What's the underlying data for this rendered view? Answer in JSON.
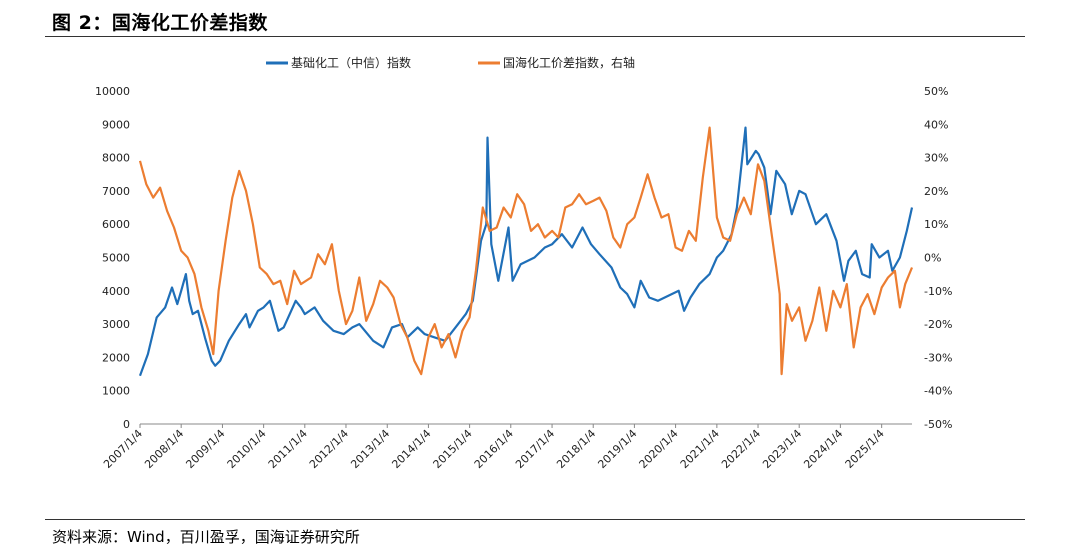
{
  "figure": {
    "title": "图 2：国海化工价差指数",
    "source": "资料来源：Wind，百川盈孚，国海证券研究所"
  },
  "chart_data": {
    "type": "line",
    "x_axis": {
      "tick_labels": [
        "2007/1/4",
        "2008/1/4",
        "2009/1/4",
        "2010/1/4",
        "2011/1/4",
        "2012/1/4",
        "2013/1/4",
        "2014/1/4",
        "2015/1/4",
        "2016/1/4",
        "2017/1/4",
        "2018/1/4",
        "2019/1/4",
        "2020/1/4",
        "2021/1/4",
        "2022/1/4",
        "2023/1/4",
        "2024/1/4",
        "2025/1/4"
      ],
      "range": [
        "2007-01-04",
        "2025-09-30"
      ]
    },
    "y_axis_left": {
      "range": [
        0,
        10000
      ],
      "tick_labels": [
        "0",
        "1000",
        "2000",
        "3000",
        "4000",
        "5000",
        "6000",
        "7000",
        "8000",
        "9000",
        "10000"
      ]
    },
    "y_axis_right": {
      "range": [
        -50,
        50
      ],
      "unit": "%",
      "tick_labels": [
        "-50%",
        "-40%",
        "-30%",
        "-20%",
        "-10%",
        "0%",
        "10%",
        "20%",
        "30%",
        "40%",
        "50%"
      ]
    },
    "grid": false,
    "legend": {
      "placement": "top-center"
    },
    "series": [
      {
        "name": "基础化工（中信）指数",
        "axis": "left",
        "color": "#1f6fb8",
        "points": [
          [
            "2007-01-04",
            1450
          ],
          [
            "2007-03-15",
            2100
          ],
          [
            "2007-06-01",
            3200
          ],
          [
            "2007-08-15",
            3500
          ],
          [
            "2007-10-15",
            4100
          ],
          [
            "2007-12-01",
            3600
          ],
          [
            "2008-01-04",
            4000
          ],
          [
            "2008-02-15",
            4500
          ],
          [
            "2008-03-15",
            3700
          ],
          [
            "2008-04-15",
            3300
          ],
          [
            "2008-06-01",
            3400
          ],
          [
            "2008-08-01",
            2600
          ],
          [
            "2008-10-01",
            1900
          ],
          [
            "2008-11-01",
            1750
          ],
          [
            "2008-12-15",
            1900
          ],
          [
            "2009-03-01",
            2500
          ],
          [
            "2009-06-01",
            3000
          ],
          [
            "2009-08-01",
            3300
          ],
          [
            "2009-09-01",
            2900
          ],
          [
            "2009-11-15",
            3400
          ],
          [
            "2010-01-04",
            3500
          ],
          [
            "2010-03-01",
            3700
          ],
          [
            "2010-05-15",
            2800
          ],
          [
            "2010-07-01",
            2900
          ],
          [
            "2010-10-15",
            3700
          ],
          [
            "2010-12-01",
            3500
          ],
          [
            "2011-01-04",
            3300
          ],
          [
            "2011-04-01",
            3500
          ],
          [
            "2011-06-15",
            3100
          ],
          [
            "2011-09-15",
            2800
          ],
          [
            "2011-12-15",
            2700
          ],
          [
            "2012-03-01",
            2900
          ],
          [
            "2012-05-01",
            3000
          ],
          [
            "2012-09-01",
            2500
          ],
          [
            "2012-12-01",
            2300
          ],
          [
            "2013-02-15",
            2900
          ],
          [
            "2013-05-15",
            3000
          ],
          [
            "2013-07-01",
            2600
          ],
          [
            "2013-10-01",
            2900
          ],
          [
            "2013-12-01",
            2700
          ],
          [
            "2014-03-01",
            2600
          ],
          [
            "2014-06-01",
            2500
          ],
          [
            "2014-09-01",
            2900
          ],
          [
            "2014-12-01",
            3300
          ],
          [
            "2015-02-01",
            3700
          ],
          [
            "2015-04-15",
            5500
          ],
          [
            "2015-06-01",
            6000
          ],
          [
            "2015-06-12",
            8600
          ],
          [
            "2015-07-15",
            5400
          ],
          [
            "2015-09-15",
            4300
          ],
          [
            "2015-12-15",
            5900
          ],
          [
            "2016-01-20",
            4300
          ],
          [
            "2016-04-01",
            4800
          ],
          [
            "2016-08-01",
            5000
          ],
          [
            "2016-11-01",
            5300
          ],
          [
            "2017-01-04",
            5400
          ],
          [
            "2017-04-01",
            5700
          ],
          [
            "2017-07-01",
            5300
          ],
          [
            "2017-10-01",
            5900
          ],
          [
            "2017-12-15",
            5400
          ],
          [
            "2018-03-01",
            5100
          ],
          [
            "2018-06-15",
            4700
          ],
          [
            "2018-09-01",
            4100
          ],
          [
            "2018-11-01",
            3900
          ],
          [
            "2019-01-04",
            3500
          ],
          [
            "2019-03-01",
            4300
          ],
          [
            "2019-05-15",
            3800
          ],
          [
            "2019-08-01",
            3700
          ],
          [
            "2019-12-01",
            3900
          ],
          [
            "2020-02-01",
            4000
          ],
          [
            "2020-03-20",
            3400
          ],
          [
            "2020-05-15",
            3800
          ],
          [
            "2020-08-01",
            4200
          ],
          [
            "2020-11-01",
            4500
          ],
          [
            "2021-01-04",
            5000
          ],
          [
            "2021-03-01",
            5200
          ],
          [
            "2021-05-15",
            5700
          ],
          [
            "2021-07-01",
            6500
          ],
          [
            "2021-09-15",
            8900
          ],
          [
            "2021-10-01",
            7800
          ],
          [
            "2021-12-15",
            8200
          ],
          [
            "2022-01-10",
            8100
          ],
          [
            "2022-03-01",
            7700
          ],
          [
            "2022-04-25",
            6300
          ],
          [
            "2022-06-15",
            7600
          ],
          [
            "2022-09-01",
            7200
          ],
          [
            "2022-10-30",
            6300
          ],
          [
            "2023-01-04",
            7000
          ],
          [
            "2023-03-01",
            6900
          ],
          [
            "2023-06-01",
            6000
          ],
          [
            "2023-09-01",
            6300
          ],
          [
            "2023-12-01",
            5500
          ],
          [
            "2024-02-05",
            4300
          ],
          [
            "2024-03-15",
            4900
          ],
          [
            "2024-05-20",
            5200
          ],
          [
            "2024-07-15",
            4500
          ],
          [
            "2024-09-20",
            4400
          ],
          [
            "2024-10-08",
            5400
          ],
          [
            "2024-12-15",
            5000
          ],
          [
            "2025-03-01",
            5200
          ],
          [
            "2025-04-08",
            4600
          ],
          [
            "2025-06-15",
            5000
          ],
          [
            "2025-08-15",
            5800
          ],
          [
            "2025-09-30",
            6500
          ]
        ]
      },
      {
        "name": "国海化工价差指数，右轴",
        "axis": "right",
        "color": "#ec7d31",
        "points": [
          [
            "2007-01-04",
            29
          ],
          [
            "2007-03-01",
            22
          ],
          [
            "2007-05-01",
            18
          ],
          [
            "2007-07-01",
            21
          ],
          [
            "2007-09-01",
            14
          ],
          [
            "2007-11-01",
            9
          ],
          [
            "2008-01-04",
            2
          ],
          [
            "2008-03-01",
            0
          ],
          [
            "2008-05-01",
            -5
          ],
          [
            "2008-07-01",
            -15
          ],
          [
            "2008-09-01",
            -22
          ],
          [
            "2008-10-15",
            -29
          ],
          [
            "2008-12-01",
            -10
          ],
          [
            "2009-02-01",
            5
          ],
          [
            "2009-04-01",
            18
          ],
          [
            "2009-06-01",
            26
          ],
          [
            "2009-08-01",
            20
          ],
          [
            "2009-10-01",
            10
          ],
          [
            "2009-12-01",
            -3
          ],
          [
            "2010-02-01",
            -5
          ],
          [
            "2010-04-01",
            -8
          ],
          [
            "2010-06-01",
            -7
          ],
          [
            "2010-08-01",
            -14
          ],
          [
            "2010-10-01",
            -4
          ],
          [
            "2010-12-01",
            -8
          ],
          [
            "2011-03-01",
            -6
          ],
          [
            "2011-05-01",
            1
          ],
          [
            "2011-07-01",
            -2
          ],
          [
            "2011-09-01",
            4
          ],
          [
            "2011-11-01",
            -10
          ],
          [
            "2012-01-04",
            -20
          ],
          [
            "2012-03-01",
            -16
          ],
          [
            "2012-05-01",
            -6
          ],
          [
            "2012-07-01",
            -19
          ],
          [
            "2012-09-01",
            -14
          ],
          [
            "2012-11-01",
            -7
          ],
          [
            "2013-01-04",
            -9
          ],
          [
            "2013-03-01",
            -12
          ],
          [
            "2013-05-01",
            -20
          ],
          [
            "2013-07-01",
            -24
          ],
          [
            "2013-09-01",
            -31
          ],
          [
            "2013-11-01",
            -35
          ],
          [
            "2014-01-04",
            -24
          ],
          [
            "2014-03-01",
            -20
          ],
          [
            "2014-05-01",
            -27
          ],
          [
            "2014-07-01",
            -23
          ],
          [
            "2014-09-01",
            -30
          ],
          [
            "2014-11-01",
            -22
          ],
          [
            "2015-01-04",
            -18
          ],
          [
            "2015-03-01",
            -4
          ],
          [
            "2015-05-01",
            15
          ],
          [
            "2015-07-01",
            8
          ],
          [
            "2015-09-01",
            9
          ],
          [
            "2015-11-01",
            15
          ],
          [
            "2016-01-04",
            12
          ],
          [
            "2016-03-01",
            19
          ],
          [
            "2016-05-01",
            16
          ],
          [
            "2016-07-01",
            8
          ],
          [
            "2016-09-01",
            10
          ],
          [
            "2016-11-01",
            6
          ],
          [
            "2017-01-04",
            8
          ],
          [
            "2017-03-01",
            6
          ],
          [
            "2017-05-01",
            15
          ],
          [
            "2017-07-01",
            16
          ],
          [
            "2017-09-01",
            19
          ],
          [
            "2017-11-01",
            16
          ],
          [
            "2018-01-04",
            17
          ],
          [
            "2018-03-01",
            18
          ],
          [
            "2018-05-01",
            14
          ],
          [
            "2018-07-01",
            6
          ],
          [
            "2018-09-01",
            3
          ],
          [
            "2018-11-01",
            10
          ],
          [
            "2019-01-04",
            12
          ],
          [
            "2019-03-01",
            18
          ],
          [
            "2019-05-01",
            25
          ],
          [
            "2019-07-01",
            18
          ],
          [
            "2019-09-01",
            12
          ],
          [
            "2019-11-01",
            13
          ],
          [
            "2020-01-04",
            3
          ],
          [
            "2020-03-01",
            2
          ],
          [
            "2020-05-01",
            8
          ],
          [
            "2020-07-01",
            5
          ],
          [
            "2020-09-01",
            24
          ],
          [
            "2020-11-01",
            39
          ],
          [
            "2021-01-04",
            12
          ],
          [
            "2021-03-01",
            6
          ],
          [
            "2021-05-01",
            5
          ],
          [
            "2021-07-01",
            13
          ],
          [
            "2021-09-01",
            18
          ],
          [
            "2021-11-01",
            13
          ],
          [
            "2022-01-04",
            28
          ],
          [
            "2022-03-01",
            23
          ],
          [
            "2022-05-01",
            8
          ],
          [
            "2022-06-15",
            -3
          ],
          [
            "2022-07-15",
            -11
          ],
          [
            "2022-08-01",
            -35
          ],
          [
            "2022-09-15",
            -14
          ],
          [
            "2022-11-01",
            -19
          ],
          [
            "2023-01-04",
            -15
          ],
          [
            "2023-03-01",
            -25
          ],
          [
            "2023-05-01",
            -19
          ],
          [
            "2023-07-01",
            -9
          ],
          [
            "2023-09-01",
            -22
          ],
          [
            "2023-11-01",
            -10
          ],
          [
            "2024-01-04",
            -15
          ],
          [
            "2024-03-01",
            -8
          ],
          [
            "2024-05-01",
            -27
          ],
          [
            "2024-07-01",
            -15
          ],
          [
            "2024-09-01",
            -11
          ],
          [
            "2024-11-01",
            -17
          ],
          [
            "2025-01-04",
            -9
          ],
          [
            "2025-03-01",
            -6
          ],
          [
            "2025-05-01",
            -4
          ],
          [
            "2025-06-15",
            -15
          ],
          [
            "2025-08-01",
            -8
          ],
          [
            "2025-09-30",
            -3
          ]
        ]
      }
    ]
  }
}
